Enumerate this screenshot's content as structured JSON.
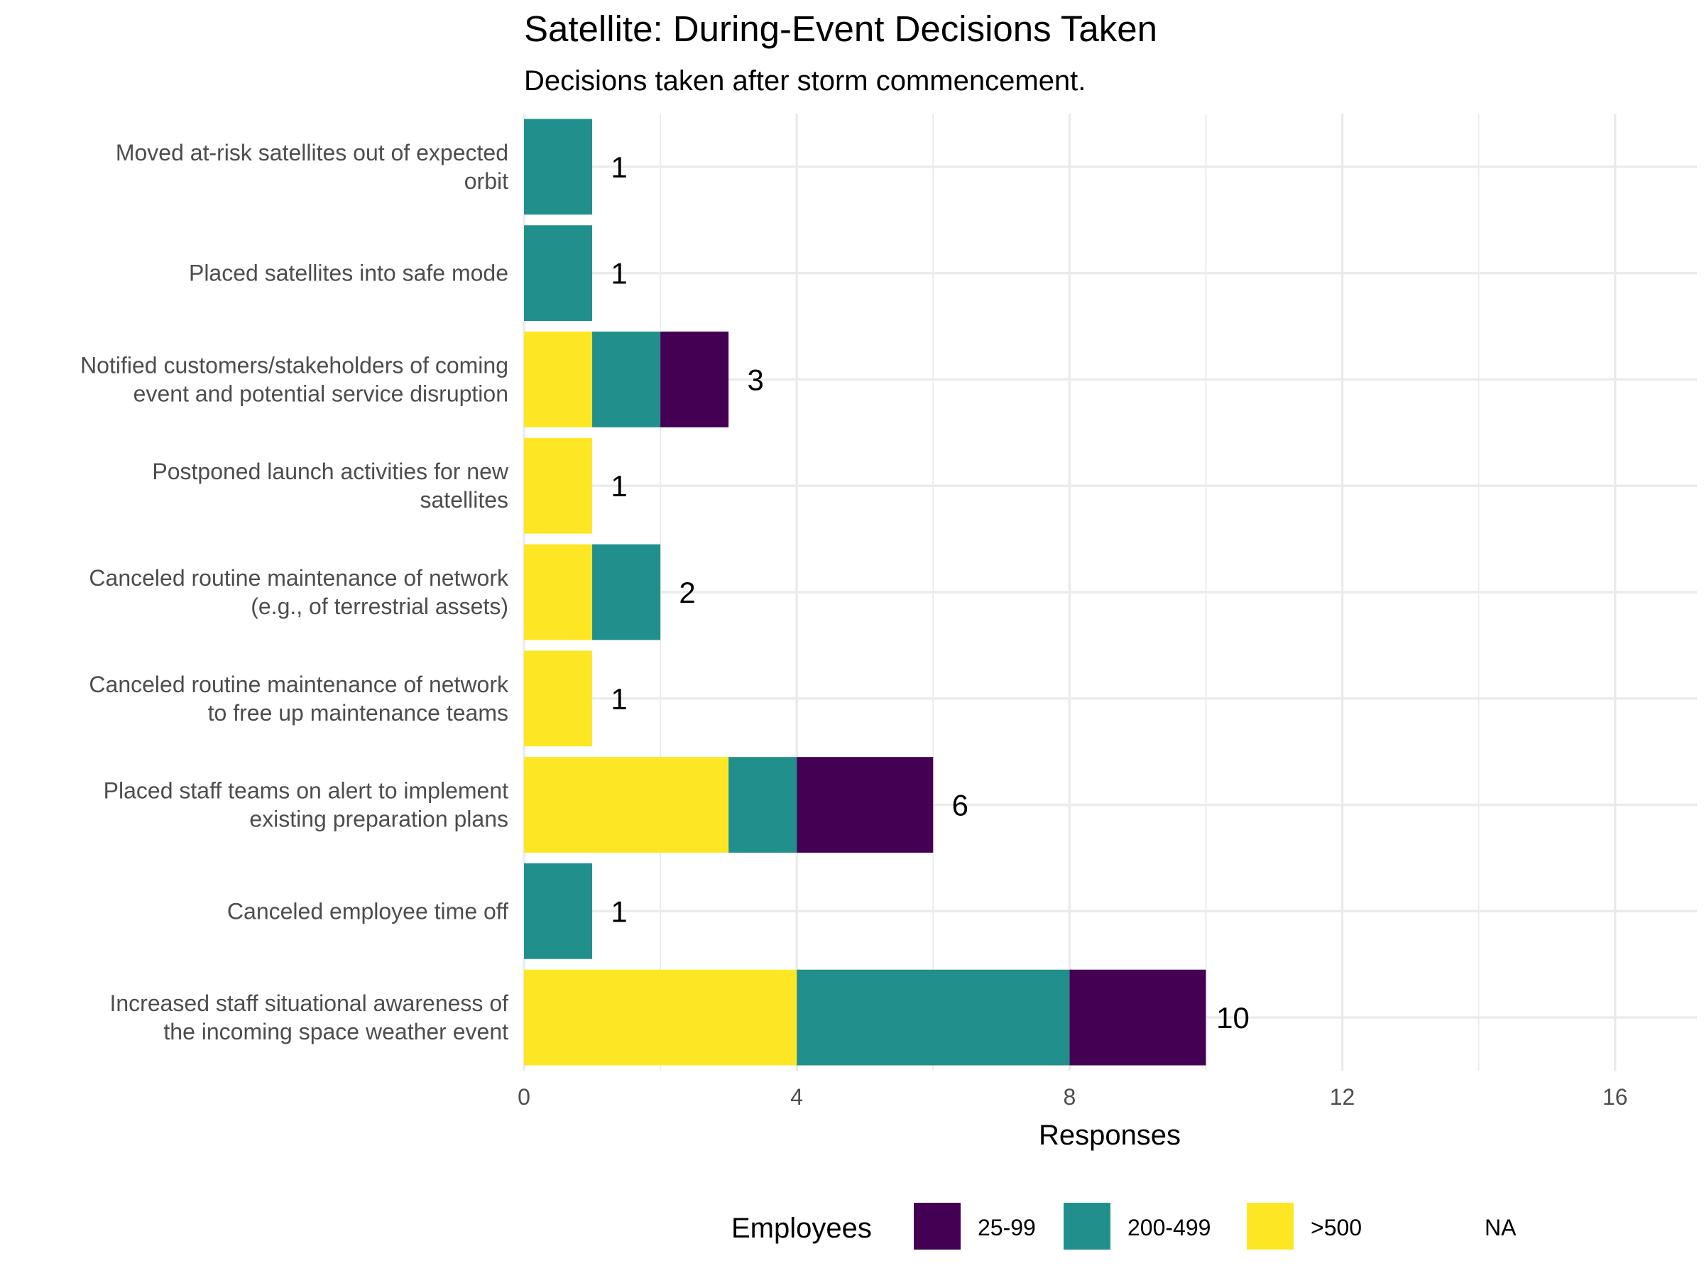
{
  "chart_data": {
    "type": "bar",
    "orientation": "horizontal",
    "stacked": true,
    "title": "Satellite: During-Event Decisions Taken",
    "subtitle": "Decisions taken after storm commencement.",
    "xlabel": "Responses",
    "ylabel": "",
    "xlim": [
      0,
      17.2
    ],
    "x_ticks": [
      0,
      4,
      8,
      12,
      16
    ],
    "x_tick_labels": [
      "0",
      "4",
      "8",
      "12",
      "16"
    ],
    "grid": true,
    "legend": {
      "title": "Employees",
      "placement": "bottom",
      "entries": [
        {
          "label": "25-99",
          "color": "#440154"
        },
        {
          "label": "200-499",
          "color": "#21908C"
        },
        {
          "label": ">500",
          "color": "#FDE725"
        },
        {
          "label": "NA",
          "color": ""
        }
      ]
    },
    "categories": [
      [
        "Moved at-risk satellites out of expected",
        "orbit"
      ],
      [
        "Placed satellites into safe mode"
      ],
      [
        "Notified customers/stakeholders of coming",
        "event and potential service disruption"
      ],
      [
        "Postponed launch activities for new",
        "satellites"
      ],
      [
        "Canceled routine maintenance of network",
        "(e.g., of terrestrial assets)"
      ],
      [
        "Canceled routine maintenance of network",
        "to free up maintenance teams"
      ],
      [
        "Placed staff teams on alert to implement",
        "existing preparation plans"
      ],
      [
        "Canceled employee time off"
      ],
      [
        "Increased staff situational awareness of",
        "the incoming space weather event"
      ]
    ],
    "stack_order": [
      ">500",
      "200-499",
      "25-99"
    ],
    "series": [
      {
        "name": ">500",
        "color": "#FDE725",
        "values": [
          0,
          0,
          1,
          1,
          1,
          1,
          3,
          0,
          4
        ]
      },
      {
        "name": "200-499",
        "color": "#21908C",
        "values": [
          1,
          1,
          1,
          0,
          1,
          0,
          1,
          1,
          4
        ]
      },
      {
        "name": "25-99",
        "color": "#440154",
        "values": [
          0,
          0,
          1,
          0,
          0,
          0,
          2,
          0,
          2
        ]
      }
    ],
    "totals": [
      1,
      1,
      3,
      1,
      2,
      1,
      6,
      1,
      10
    ],
    "total_labels": [
      "1",
      "1",
      "3",
      "1",
      "2",
      "1",
      "6",
      "1",
      "10"
    ]
  }
}
